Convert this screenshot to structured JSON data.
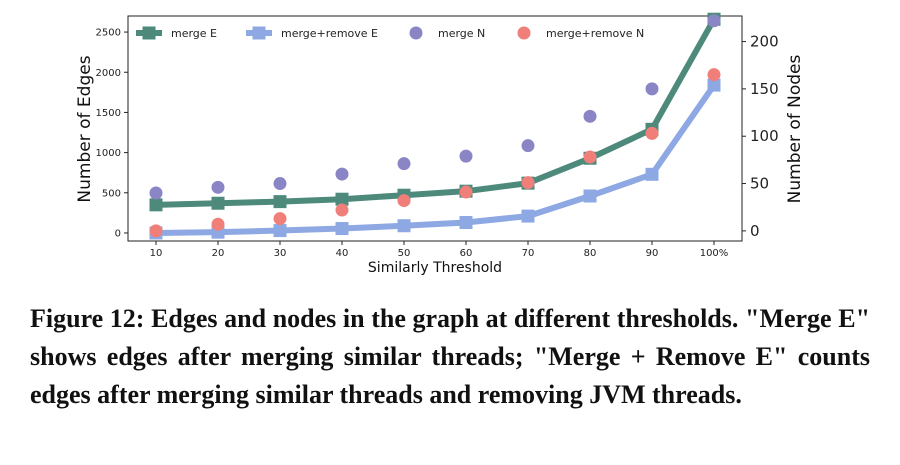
{
  "chart_data": {
    "type": "line",
    "categories": [
      "10",
      "20",
      "30",
      "40",
      "50",
      "60",
      "70",
      "80",
      "90",
      "100%"
    ],
    "xlabel": "Similarly Threshold",
    "ylabel": "Number of Edges",
    "y2label": "Number of Nodes",
    "ylim": [
      -100,
      2700
    ],
    "y2lim": [
      -10.7,
      227
    ],
    "yticks": [
      0,
      500,
      1000,
      1500,
      2000,
      2500
    ],
    "y2ticks": [
      0,
      50,
      100,
      150,
      200
    ],
    "legend": "top, single row",
    "series": [
      {
        "name": "merge E",
        "axis": "left",
        "kind": "line",
        "marker": "square",
        "color": "#4e8a7c",
        "values": [
          350,
          370,
          390,
          420,
          470,
          520,
          620,
          930,
          1290,
          2660
        ]
      },
      {
        "name": "merge+remove E",
        "axis": "left",
        "kind": "line",
        "marker": "square",
        "color": "#8ea8e4",
        "values": [
          0,
          10,
          30,
          55,
          90,
          130,
          210,
          460,
          730,
          1840
        ]
      },
      {
        "name": "merge N",
        "axis": "right",
        "kind": "scatter",
        "marker": "circle",
        "color": "#8a86c6",
        "values": [
          40,
          46,
          50,
          60,
          71,
          79,
          90,
          121,
          150,
          222
        ]
      },
      {
        "name": "merge+remove N",
        "axis": "right",
        "kind": "scatter",
        "marker": "circle",
        "color": "#f07f7a",
        "values": [
          0,
          7,
          13,
          22,
          32,
          41,
          51,
          78,
          103,
          165
        ]
      }
    ]
  },
  "caption": "Figure 12: Edges and nodes in the graph at different thresholds. \"Merge E\" shows edges after merging similar threads; \"Merge + Remove E\" counts edges after merging similar threads and removing JVM threads."
}
